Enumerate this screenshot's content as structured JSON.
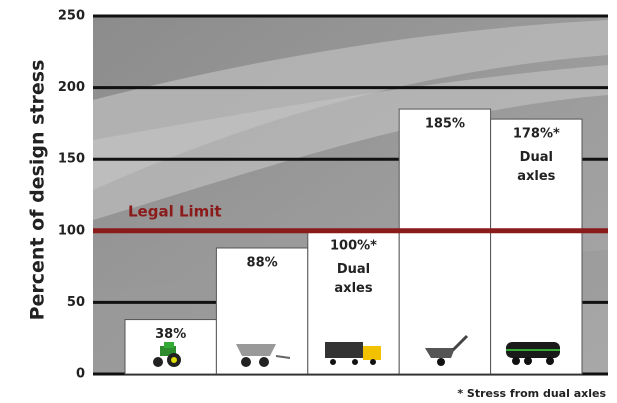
{
  "chart_data": {
    "type": "bar",
    "y_label": "Percent of design stress",
    "categories": [
      null,
      null,
      null,
      null,
      null
    ],
    "values": [
      38,
      88,
      100,
      185,
      178
    ],
    "value_labels": [
      "38%",
      "88%",
      "100%*",
      "185%",
      "178%*"
    ],
    "notes": [
      null,
      null,
      "Dual axles",
      null,
      "Dual axles"
    ],
    "color": "#ffffff",
    "ylim": [
      0,
      250
    ],
    "yticks": [
      0,
      50,
      100,
      150,
      200,
      250
    ],
    "grid": true,
    "reference_line": {
      "value": 100,
      "label": "Legal Limit",
      "color": "#8b1a1a"
    },
    "footnote": "* Stress from dual axles"
  }
}
